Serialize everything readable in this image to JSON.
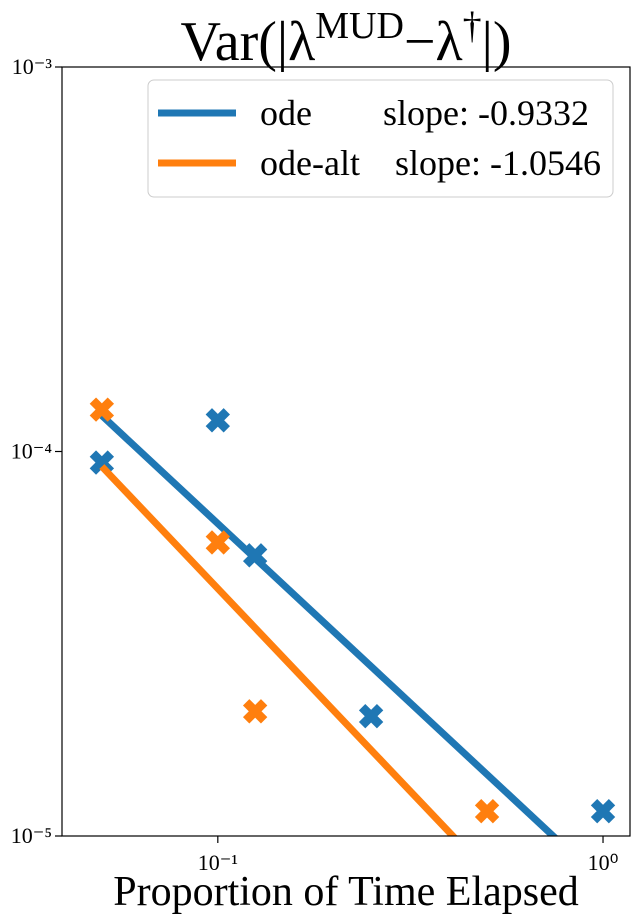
{
  "chart_data": {
    "type": "scatter",
    "title_parts": [
      "Var(|λ",
      "MUD",
      "−λ",
      "†",
      "|)"
    ],
    "x_label": "Proportion of Time Elapsed",
    "log_x": true,
    "log_y": true,
    "xlim": [
      0.0394,
      1.175
    ],
    "ylim": [
      1e-05,
      0.001
    ],
    "xticks": [
      {
        "value": 0.1,
        "label": "10⁻¹"
      },
      {
        "value": 1,
        "label": "10⁰"
      }
    ],
    "yticks": [
      {
        "value": 1e-05,
        "label": "10⁻⁵"
      },
      {
        "value": 0.0001,
        "label": "10⁻⁴"
      },
      {
        "value": 0.001,
        "label": "10⁻³"
      }
    ],
    "legend": "upper right",
    "series": [
      {
        "name": "ode",
        "label": "slope: -0.9332",
        "color": "#1f77b4",
        "x": [
          0.05,
          0.1,
          0.125,
          0.25,
          1
        ],
        "values": [
          9.36e-05,
          0.0001205,
          5.37e-05,
          2.05e-05,
          1.16e-05
        ],
        "fit_x": [
          0.05,
          1
        ],
        "fit_values": [
          0.000124,
          7.57e-06
        ]
      },
      {
        "name": "ode-alt",
        "label": "slope: -1.0546",
        "color": "#ff7f0e",
        "x": [
          0.05,
          0.1,
          0.125,
          0.5
        ],
        "values": [
          0.0001285,
          5.8e-05,
          2.11e-05,
          1.16e-05
        ],
        "fit_x": [
          0.05,
          0.5
        ],
        "fit_values": [
          9.14e-05,
          8.06e-06
        ]
      }
    ]
  }
}
